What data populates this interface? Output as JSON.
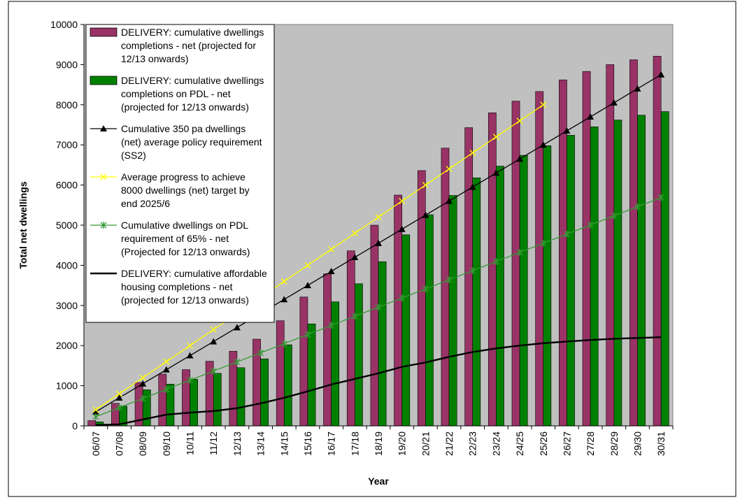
{
  "chart_data": {
    "type": "bar",
    "title": "",
    "xlabel": "Year",
    "ylabel": "Total net dwellings",
    "ylim": [
      0,
      10000
    ],
    "yticks": [
      0,
      1000,
      2000,
      3000,
      4000,
      5000,
      6000,
      7000,
      8000,
      9000,
      10000
    ],
    "grid": false,
    "plot_background": "#c0c0c0",
    "legend_position": "top-left",
    "categories": [
      "06/07",
      "07/08",
      "08/09",
      "09/10",
      "10/11",
      "11/12",
      "12/13",
      "13/14",
      "14/15",
      "15/16",
      "16/17",
      "17/18",
      "18/19",
      "19/20",
      "20/21",
      "21/22",
      "22/23",
      "23/24",
      "24/25",
      "25/26",
      "26/27",
      "27/28",
      "28/29",
      "29/30",
      "30/31"
    ],
    "series": [
      {
        "name": "DELIVERY: cumulative dwellings completions - net (projected for 12/13 onwards)",
        "kind": "bar",
        "color": "#993366",
        "values": [
          130,
          560,
          1080,
          1290,
          1400,
          1610,
          1860,
          2160,
          2620,
          3210,
          3790,
          4360,
          5000,
          5750,
          6360,
          6920,
          7430,
          7800,
          8090,
          8330,
          8620,
          8830,
          9000,
          9120,
          9210
        ]
      },
      {
        "name": "DELIVERY: cumulative dwellings completions on PDL - net (projected for 12/13 onwards)",
        "kind": "bar",
        "color": "#008000",
        "values": [
          100,
          490,
          900,
          1040,
          1160,
          1310,
          1450,
          1670,
          2020,
          2540,
          3090,
          3540,
          4090,
          4760,
          5260,
          5740,
          6180,
          6470,
          6740,
          6980,
          7240,
          7450,
          7620,
          7740,
          7830
        ]
      },
      {
        "name": "Cumulative 350 pa dwellings (net) average policy requirement (SS2)",
        "kind": "line",
        "color": "#000000",
        "marker": "triangle",
        "values": [
          350,
          700,
          1050,
          1400,
          1750,
          2100,
          2450,
          2800,
          3150,
          3500,
          3850,
          4200,
          4550,
          4900,
          5250,
          5600,
          5950,
          6300,
          6650,
          7000,
          7350,
          7700,
          8050,
          8400,
          8750
        ]
      },
      {
        "name": "Average progress to achieve 8000 dwellings (net) target by end 2025/6",
        "kind": "line",
        "color": "#ffff00",
        "marker": "x",
        "values": [
          400,
          800,
          1200,
          1600,
          2000,
          2400,
          2800,
          3200,
          3600,
          4000,
          4400,
          4800,
          5200,
          5600,
          6000,
          6400,
          6800,
          7200,
          7600,
          8000,
          null,
          null,
          null,
          null,
          null
        ]
      },
      {
        "name": "Cumulative dwellings on PDL requirement of 65% - net (Projected for 12/13 onwards)",
        "kind": "line",
        "color": "#339933",
        "marker": "star",
        "values": [
          228,
          455,
          683,
          910,
          1138,
          1365,
          1593,
          1820,
          2048,
          2275,
          2503,
          2730,
          2958,
          3185,
          3413,
          3640,
          3868,
          4095,
          4323,
          4550,
          4778,
          5005,
          5233,
          5460,
          5688
        ]
      },
      {
        "name": "DELIVERY: cumulative affordable housing completions - net (projected for 12/13 onwards)",
        "kind": "line",
        "color": "#000000",
        "marker": "none",
        "values": [
          20,
          40,
          160,
          280,
          330,
          370,
          440,
          560,
          700,
          860,
          1030,
          1170,
          1310,
          1470,
          1580,
          1720,
          1840,
          1930,
          2000,
          2060,
          2100,
          2140,
          2170,
          2190,
          2210
        ]
      }
    ],
    "legend": [
      {
        "lines": [
          "DELIVERY: cumulative dwellings",
          "completions - net (projected for",
          "12/13 onwards)"
        ]
      },
      {
        "lines": [
          "DELIVERY: cumulative dwellings",
          "completions on PDL - net",
          "(projected for 12/13 onwards)"
        ]
      },
      {
        "lines": [
          "Cumulative 350 pa dwellings",
          "(net) average policy requirement",
          "(SS2)"
        ]
      },
      {
        "lines": [
          "Average progress to achieve",
          "8000 dwellings (net) target by",
          "end 2025/6"
        ]
      },
      {
        "lines": [
          "Cumulative dwellings on PDL",
          "requirement of 65% - net",
          "(Projected for 12/13 onwards)"
        ]
      },
      {
        "lines": [
          "DELIVERY: cumulative affordable",
          "housing completions - net",
          "(projected for 12/13 onwards)"
        ]
      }
    ]
  }
}
